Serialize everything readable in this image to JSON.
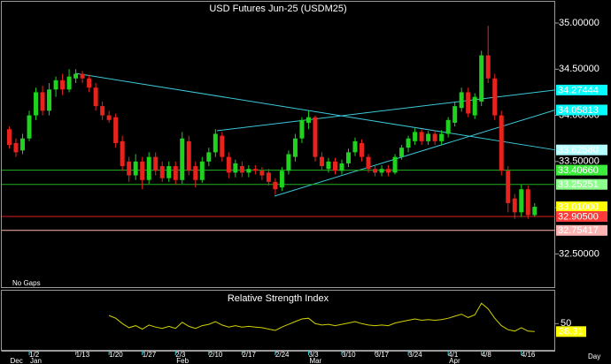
{
  "chart_data": [
    {
      "type": "candlestick",
      "title": "USD Futures Jun-25 (USDM25)",
      "note": "No Gaps",
      "x_unit": "Day",
      "categories": [
        null,
        null,
        null,
        "1/2",
        null,
        null,
        null,
        null,
        null,
        null,
        "1/13",
        null,
        null,
        null,
        null,
        "1/20",
        null,
        null,
        null,
        null,
        "1/27",
        null,
        null,
        null,
        null,
        "2/3",
        null,
        null,
        null,
        null,
        "2/10",
        null,
        null,
        null,
        null,
        "2/17",
        null,
        null,
        null,
        null,
        "2/24",
        null,
        null,
        null,
        null,
        "3/3",
        null,
        null,
        null,
        null,
        "3/10",
        null,
        null,
        null,
        null,
        "3/17",
        null,
        null,
        null,
        null,
        "3/24",
        null,
        null,
        null,
        null,
        null,
        "4/1",
        null,
        null,
        null,
        null,
        "4/8",
        null,
        null,
        null,
        null,
        null,
        "4/16",
        null,
        null
      ],
      "months": [
        "Dec",
        null,
        null,
        "Jan",
        null,
        null,
        null,
        null,
        null,
        null,
        null,
        null,
        null,
        null,
        null,
        null,
        null,
        null,
        null,
        null,
        null,
        null,
        null,
        null,
        null,
        "Feb",
        null,
        null,
        null,
        null,
        null,
        null,
        null,
        null,
        null,
        null,
        null,
        null,
        null,
        null,
        null,
        null,
        null,
        null,
        null,
        "Mar",
        null,
        null,
        null,
        null,
        null,
        null,
        null,
        null,
        null,
        null,
        null,
        null,
        null,
        null,
        null,
        null,
        null,
        null,
        null,
        null,
        "Apr",
        null,
        null,
        null,
        null,
        null,
        null,
        null,
        null,
        null,
        null,
        null,
        null,
        null
      ],
      "open": [
        33.85,
        33.7,
        33.62,
        33.75,
        34.0,
        34.25,
        34.05,
        34.28,
        34.38,
        34.28,
        34.4,
        34.45,
        34.4,
        34.3,
        34.1,
        34.0,
        33.98,
        33.72,
        33.5,
        33.35,
        33.5,
        33.3,
        33.55,
        33.45,
        33.32,
        33.45,
        33.3,
        33.72,
        33.45,
        33.3,
        33.5,
        33.6,
        33.78,
        33.55,
        33.38,
        33.45,
        33.38,
        33.42,
        33.4,
        33.38,
        33.28,
        33.22,
        33.4,
        33.55,
        33.75,
        33.92,
        33.98,
        33.55,
        33.42,
        33.5,
        33.4,
        33.48,
        33.6,
        33.7,
        33.55,
        33.42,
        33.38,
        33.42,
        33.38,
        33.55,
        33.65,
        33.72,
        33.82,
        33.72,
        33.8,
        33.72,
        33.8,
        33.92,
        34.08,
        34.25,
        34.0,
        34.15,
        34.65,
        34.4,
        34.0,
        33.4,
        33.1,
        32.95,
        33.2,
        32.92
      ],
      "high": [
        33.88,
        33.75,
        33.8,
        34.05,
        34.3,
        34.32,
        34.35,
        34.42,
        34.45,
        34.5,
        34.5,
        34.48,
        34.44,
        34.35,
        34.15,
        34.05,
        34.02,
        33.78,
        33.55,
        33.58,
        33.55,
        33.6,
        33.6,
        33.5,
        33.5,
        33.5,
        33.82,
        33.78,
        33.5,
        33.55,
        33.65,
        33.85,
        33.82,
        33.6,
        33.52,
        33.5,
        33.46,
        33.46,
        33.44,
        33.42,
        33.32,
        33.44,
        33.62,
        33.8,
        33.98,
        34.05,
        34.0,
        33.6,
        33.54,
        33.54,
        33.52,
        33.64,
        33.76,
        33.74,
        33.58,
        33.46,
        33.46,
        33.46,
        33.58,
        33.68,
        33.78,
        33.86,
        33.85,
        33.83,
        33.84,
        33.84,
        33.98,
        34.14,
        34.3,
        34.3,
        34.24,
        34.7,
        34.97,
        34.45,
        34.05,
        33.45,
        33.15,
        33.25,
        33.24,
        33.05
      ],
      "low": [
        33.64,
        33.55,
        33.58,
        33.72,
        33.95,
        34.0,
        34.0,
        34.2,
        34.22,
        34.25,
        34.35,
        34.35,
        34.25,
        34.05,
        33.95,
        33.92,
        33.65,
        33.4,
        33.28,
        33.3,
        33.2,
        33.26,
        33.35,
        33.28,
        33.28,
        33.25,
        33.26,
        33.35,
        33.22,
        33.27,
        33.45,
        33.55,
        33.5,
        33.32,
        33.33,
        33.33,
        33.33,
        33.36,
        33.3,
        33.24,
        33.14,
        33.18,
        33.36,
        33.5,
        33.7,
        33.85,
        33.5,
        33.4,
        33.38,
        33.36,
        33.36,
        33.44,
        33.56,
        33.5,
        33.38,
        33.34,
        33.34,
        33.34,
        33.36,
        33.52,
        33.6,
        33.68,
        33.68,
        33.68,
        33.68,
        33.68,
        33.76,
        33.88,
        34.04,
        33.98,
        33.96,
        34.1,
        34.35,
        33.95,
        33.35,
        32.95,
        32.88,
        32.9,
        32.88,
        32.9
      ],
      "close": [
        33.68,
        33.6,
        33.75,
        34.0,
        34.25,
        34.05,
        34.28,
        34.38,
        34.28,
        34.42,
        34.45,
        34.4,
        34.3,
        34.1,
        34.0,
        33.95,
        33.7,
        33.45,
        33.35,
        33.5,
        33.3,
        33.55,
        33.4,
        33.32,
        33.45,
        33.3,
        33.75,
        33.4,
        33.3,
        33.5,
        33.6,
        33.8,
        33.55,
        33.38,
        33.48,
        33.38,
        33.42,
        33.4,
        33.35,
        33.28,
        33.2,
        33.4,
        33.58,
        33.75,
        33.95,
        33.98,
        33.55,
        33.45,
        33.5,
        33.4,
        33.48,
        33.6,
        33.72,
        33.55,
        33.42,
        33.38,
        33.42,
        33.38,
        33.55,
        33.65,
        33.75,
        33.82,
        33.72,
        33.8,
        33.72,
        33.8,
        33.95,
        34.1,
        34.25,
        34.02,
        34.2,
        34.65,
        34.4,
        34.0,
        33.4,
        33.05,
        32.95,
        33.2,
        32.92,
        33.01
      ],
      "up_color": "#1ed21e",
      "down_color": "#e8231e",
      "title_color": "#ffff3c",
      "ylim": [
        32.14,
        35.23
      ],
      "yticks": [
        {
          "value": 35,
          "label": "35.00000"
        },
        {
          "value": 34.5,
          "label": "34.50000"
        },
        {
          "value": 34,
          "label": "34.00000"
        },
        {
          "value": 33.5,
          "label": "33.50000"
        },
        {
          "value": 33,
          "label": "33.00000"
        },
        {
          "value": 32.5,
          "label": "32.50000"
        }
      ],
      "price_labels": [
        {
          "value": 34.27444,
          "label": "34.27444",
          "color": "#00ffff",
          "trend_color": "#3cc8d8"
        },
        {
          "value": 34.05813,
          "label": "34.05813",
          "color": "#00ffff",
          "trend_color": "#3cc8d8"
        },
        {
          "value": 33.6258,
          "label": "33.62580",
          "color": "#b4ffff",
          "trend_color": "#3cc8d8"
        },
        {
          "value": 33.4066,
          "label": "33.40660",
          "color": "#3cee3c",
          "line_color": "#22b022"
        },
        {
          "value": 33.25251,
          "label": "33.25251",
          "color": "#8cff8c",
          "line_color": "#22b022"
        },
        {
          "value": 33.01,
          "label": "33.01000",
          "color": "#ffff00"
        },
        {
          "value": 32.905,
          "label": "32.90500",
          "color": "#ff3a3a",
          "line_color": "#d82020"
        },
        {
          "value": 32.75417,
          "label": "32.75417",
          "color": "#ffb4b4",
          "line_color": "#ffb4b4"
        }
      ]
    },
    {
      "type": "line",
      "title": "Relative Strength Index",
      "color": "#d2d200",
      "values": [
        null,
        null,
        null,
        null,
        null,
        null,
        null,
        null,
        null,
        null,
        null,
        null,
        null,
        null,
        null,
        62,
        58,
        50,
        44,
        47,
        42,
        48,
        45,
        43,
        46,
        43,
        52,
        46,
        43,
        47,
        49,
        53,
        48,
        45,
        47,
        45,
        46,
        45,
        44,
        42,
        40,
        45,
        49,
        53,
        57,
        58,
        50,
        48,
        49,
        47,
        49,
        51,
        53,
        50,
        48,
        47,
        48,
        47,
        51,
        53,
        55,
        57,
        55,
        56,
        55,
        56,
        58,
        61,
        64,
        59,
        63,
        80,
        72,
        58,
        47,
        41,
        39,
        44,
        39,
        38.31
      ],
      "label_color": "#ffff00",
      "ylim": [
        10,
        100
      ],
      "yticks": [
        50
      ]
    }
  ]
}
